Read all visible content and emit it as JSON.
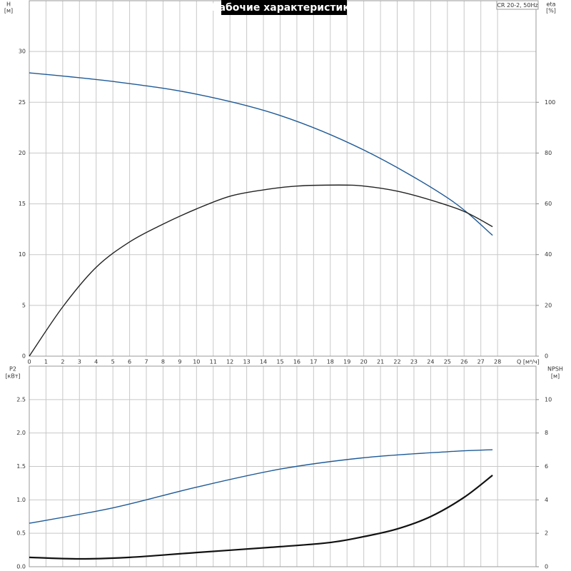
{
  "chart_data": [
    {
      "type": "line",
      "title": "Рабочие характеристики",
      "model": "CR 20-2, 50Hz",
      "ylabel": "H",
      "yunit": "[м]",
      "y2label": "eta",
      "y2unit": "[%]",
      "xlabel": "Q [м³/ч]",
      "xlim": [
        0,
        30.3
      ],
      "xticks": [
        0,
        1,
        2,
        3,
        4,
        5,
        6,
        7,
        8,
        9,
        10,
        11,
        12,
        13,
        14,
        15,
        16,
        17,
        18,
        19,
        20,
        21,
        22,
        23,
        24,
        25,
        26,
        27,
        28
      ],
      "xtick_labels_visible": true,
      "ylim": [
        0,
        35
      ],
      "yticks": [
        0,
        5,
        10,
        15,
        20,
        25,
        30
      ],
      "y2lim": [
        0,
        140
      ],
      "y2ticks": [
        0,
        20,
        40,
        60,
        80,
        100
      ],
      "grid": true,
      "series": [
        {
          "color": "#1f5a96",
          "x": [
            0,
            5,
            10,
            15,
            20,
            25,
            27.7
          ],
          "values": [
            27.9,
            27.05,
            25.8,
            23.7,
            20.3,
            15.6,
            11.9
          ]
        },
        {
          "color": "#222222",
          "axis": "y2",
          "x": [
            0,
            2,
            4,
            6,
            8,
            10,
            12,
            14,
            16,
            18.5,
            20,
            22,
            24,
            26,
            27.7
          ],
          "values": [
            0,
            19.4,
            35,
            45,
            52,
            58,
            63,
            65.5,
            67,
            67.4,
            67,
            65,
            61.5,
            57,
            51
          ]
        }
      ]
    },
    {
      "type": "line",
      "ylabel": "P2",
      "yunit": "[кВт]",
      "y2label": "NPSH",
      "y2unit": "[м]",
      "xlim": [
        0,
        30.3
      ],
      "xticks": [
        0,
        1,
        2,
        3,
        4,
        5,
        6,
        7,
        8,
        9,
        10,
        11,
        12,
        13,
        14,
        15,
        16,
        17,
        18,
        19,
        20,
        21,
        22,
        23,
        24,
        25,
        26,
        27,
        28
      ],
      "xtick_labels_visible": false,
      "ylim": [
        0,
        3.0
      ],
      "yticks": [
        {
          "value": 0,
          "label": "0.0"
        },
        0.5,
        {
          "value": 1,
          "label": "1.0"
        },
        1.5,
        {
          "value": 2,
          "label": "2.0"
        },
        2.5
      ],
      "y2lim": [
        0,
        12
      ],
      "y2ticks": [
        0,
        2,
        4,
        6,
        8,
        10
      ],
      "grid": true,
      "series": [
        {
          "color": "#1f5a96",
          "x": [
            0,
            5,
            10,
            15,
            20,
            25,
            27.7
          ],
          "values": [
            0.65,
            0.88,
            1.19,
            1.46,
            1.63,
            1.72,
            1.75
          ]
        },
        {
          "color": "#111111",
          "axis": "y2",
          "x": [
            0,
            3,
            6,
            10,
            15,
            18,
            20,
            22,
            24,
            26,
            27.7
          ],
          "values": [
            0.56,
            0.47,
            0.56,
            0.85,
            1.2,
            1.45,
            1.8,
            2.26,
            3.0,
            4.15,
            5.47
          ]
        }
      ]
    }
  ]
}
